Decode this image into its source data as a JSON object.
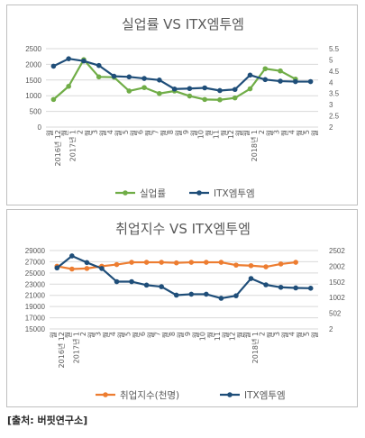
{
  "source": "[출처: 버핏연구소]",
  "chart_data": [
    {
      "type": "line",
      "title": "실업률 VS ITX엠투엠",
      "x": [
        "2016년 12월",
        "2017년 1월",
        "2월",
        "3월",
        "4월",
        "5월",
        "6월",
        "7월",
        "8월",
        "9월",
        "10월",
        "11월",
        "12월",
        "2018년 1월",
        "2월",
        "3월",
        "4월",
        "5월"
      ],
      "tick_lines": [
        [
          "월",
          "2016년 12"
        ],
        [
          "월",
          "2017년 1"
        ],
        [
          "2",
          "월"
        ],
        [
          "3",
          "월"
        ],
        [
          "4",
          "월"
        ],
        [
          "5",
          "월"
        ],
        [
          "6",
          "월"
        ],
        [
          "7",
          "월"
        ],
        [
          "8",
          "월"
        ],
        [
          "9",
          "월"
        ],
        [
          "10",
          "월"
        ],
        [
          "11",
          "월"
        ],
        [
          "12",
          "월"
        ],
        [
          "월",
          "2018년 1"
        ],
        [
          "2",
          "월"
        ],
        [
          "3",
          "월"
        ],
        [
          "4",
          "월"
        ],
        [
          "5",
          "월"
        ]
      ],
      "y_left": {
        "ylim": [
          0,
          2500
        ],
        "ticks": [
          "0",
          "500",
          "1000",
          "1500",
          "2000",
          "2500"
        ]
      },
      "y_right": {
        "ylim": [
          2,
          5.5
        ],
        "ticks": [
          "2",
          "2.5",
          "3",
          "3.5",
          "4",
          "4.5",
          "5",
          "5.5"
        ]
      },
      "series": [
        {
          "name": "실업률",
          "axis": "left",
          "color": "#70ad47",
          "values": [
            880,
            1300,
            2150,
            1600,
            1590,
            1150,
            1260,
            1070,
            1150,
            990,
            880,
            870,
            930,
            1220,
            1860,
            1790,
            1530,
            null
          ]
        },
        {
          "name": "ITX엠투엠",
          "axis": "right",
          "color": "#1f4e79",
          "values": [
            4.72,
            5.05,
            4.95,
            4.75,
            4.27,
            4.24,
            4.17,
            4.1,
            3.7,
            3.72,
            3.75,
            3.63,
            3.68,
            4.32,
            4.12,
            4.05,
            4.03,
            4.03
          ]
        }
      ],
      "legend": "bottom"
    },
    {
      "type": "line",
      "title": "취업지수 VS ITX엠투엠",
      "x": [
        "2016년 12월",
        "2017년 1월",
        "2월",
        "3월",
        "4월",
        "5월",
        "6월",
        "7월",
        "8월",
        "9월",
        "10월",
        "11월",
        "12월",
        "2018년 1월",
        "2월",
        "3월",
        "4월",
        "5월"
      ],
      "tick_lines": [
        [
          "월",
          "2016년 12"
        ],
        [
          "월",
          "2017년 1"
        ],
        [
          "2",
          "월"
        ],
        [
          "3",
          "월"
        ],
        [
          "4",
          "월"
        ],
        [
          "5",
          "월"
        ],
        [
          "6",
          "월"
        ],
        [
          "7",
          "월"
        ],
        [
          "8",
          "월"
        ],
        [
          "9",
          "월"
        ],
        [
          "10",
          "월"
        ],
        [
          "11",
          "월"
        ],
        [
          "12",
          "월"
        ],
        [
          "월",
          "2018년 1"
        ],
        [
          "2",
          "월"
        ],
        [
          "3",
          "월"
        ],
        [
          "4",
          "월"
        ],
        [
          "5",
          "월"
        ]
      ],
      "y_left": {
        "ylim": [
          15000,
          29000
        ],
        "ticks": [
          "15000",
          "17000",
          "19000",
          "21000",
          "23000",
          "25000",
          "27000",
          "29000"
        ]
      },
      "y_right": {
        "ylim": [
          2,
          2502
        ],
        "ticks": [
          "2",
          "502",
          "1002",
          "1502",
          "2002",
          "2502"
        ]
      },
      "series": [
        {
          "name": "취업지수(천명)",
          "axis": "left",
          "color": "#ed7d31",
          "values": [
            26200,
            25700,
            25800,
            26200,
            26500,
            26900,
            26900,
            26900,
            26800,
            26900,
            26900,
            26900,
            26400,
            26300,
            26100,
            26600,
            26900,
            null
          ]
        },
        {
          "name": "ITX엠투엠",
          "axis": "right",
          "color": "#1f4e79",
          "values": [
            1950,
            2330,
            2120,
            1930,
            1510,
            1510,
            1400,
            1350,
            1080,
            1110,
            1110,
            980,
            1060,
            1610,
            1410,
            1330,
            1310,
            1300
          ]
        }
      ],
      "legend": "bottom"
    }
  ]
}
